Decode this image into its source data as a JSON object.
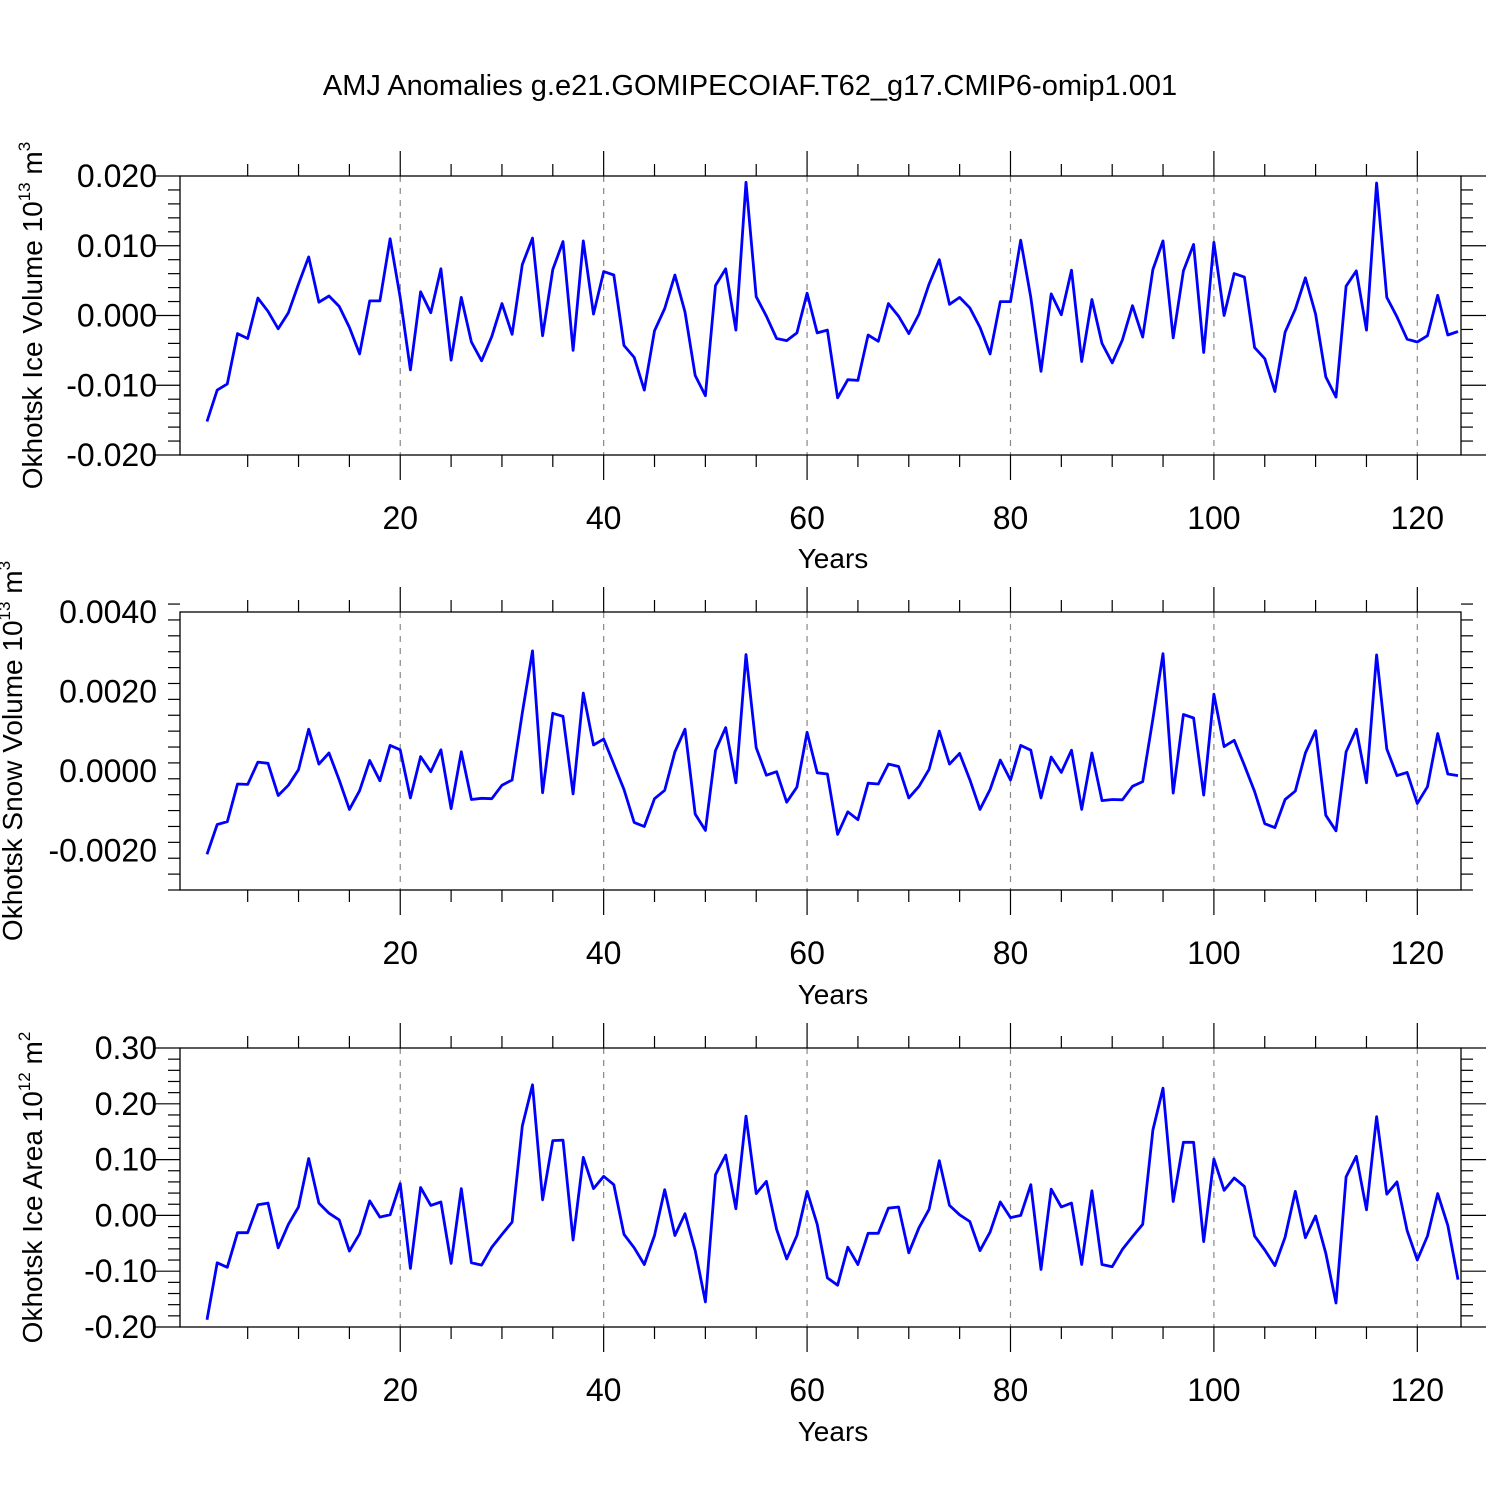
{
  "title": "AMJ Anomalies g.e21.GOMIPECOIAF.T62_g17.CMIP6-omip1.001",
  "chart_data": [
    {
      "type": "line",
      "ylabel": "Okhotsk Ice Volume 10",
      "ylabel_sup": "13",
      "ylabel_unit": "m",
      "ylabel_unit_sup": "3",
      "xlabel": "Years",
      "xlim": [
        1,
        124
      ],
      "ylim": [
        -0.02,
        0.02
      ],
      "xticks": [
        20,
        40,
        60,
        80,
        100,
        120
      ],
      "xtick_labels": [
        "20",
        "40",
        "60",
        "80",
        "100",
        "120"
      ],
      "yticks": [
        -0.02,
        -0.01,
        0.0,
        0.01,
        0.02
      ],
      "ytick_labels": [
        "-0.020",
        "-0.010",
        "0.000",
        "0.010",
        "0.020"
      ],
      "line_color": "#0000ff",
      "values": [
        -0.0152,
        -0.0107,
        -0.0098,
        -0.0026,
        -0.0033,
        0.0025,
        0.0006,
        -0.0019,
        0.0004,
        0.0045,
        0.0084,
        0.0019,
        0.0028,
        0.0013,
        -0.0017,
        -0.0055,
        0.0021,
        0.0021,
        0.011,
        0.0026,
        -0.0078,
        0.0034,
        0.0004,
        0.0067,
        -0.0064,
        0.0026,
        -0.0038,
        -0.0065,
        -0.003,
        0.0017,
        -0.0027,
        0.0073,
        0.0111,
        -0.0029,
        0.0066,
        0.0106,
        -0.005,
        0.0107,
        0.0002,
        0.0063,
        0.0058,
        -0.0043,
        -0.006,
        -0.0107,
        -0.0022,
        0.001,
        0.0058,
        0.0005,
        -0.0086,
        -0.0115,
        0.0043,
        0.0067,
        -0.0021,
        0.0191,
        0.0027,
        -0.0001,
        -0.0033,
        -0.0036,
        -0.0025,
        0.0032,
        -0.0025,
        -0.0021,
        -0.0118,
        -0.0092,
        -0.0093,
        -0.0028,
        -0.0037,
        0.0017,
        -0.0001,
        -0.0026,
        0.0002,
        0.0045,
        0.008,
        0.0016,
        0.0026,
        0.0011,
        -0.0017,
        -0.0055,
        0.002,
        0.002,
        0.0108,
        0.0026,
        -0.008,
        0.0031,
        0.0001,
        0.0065,
        -0.0066,
        0.0023,
        -0.004,
        -0.0068,
        -0.0035,
        0.0014,
        -0.0031,
        0.0066,
        0.0107,
        -0.0032,
        0.0064,
        0.0102,
        -0.0053,
        0.0105,
        0.0,
        0.006,
        0.0055,
        -0.0046,
        -0.0062,
        -0.0109,
        -0.0024,
        0.0009,
        0.0054,
        0.0002,
        -0.0088,
        -0.0117,
        0.0042,
        0.0064,
        -0.0021,
        0.019,
        0.0026,
        -0.0002,
        -0.0034,
        -0.0038,
        -0.0029,
        0.0029,
        -0.0028,
        -0.0023
      ]
    },
    {
      "type": "line",
      "ylabel": "Okhotsk Snow Volume 10",
      "ylabel_sup": "13",
      "ylabel_unit": "m",
      "ylabel_unit_sup": "3",
      "xlabel": "Years",
      "xlim": [
        1,
        124
      ],
      "ylim": [
        -0.003,
        0.004
      ],
      "xticks": [
        20,
        40,
        60,
        80,
        100,
        120
      ],
      "xtick_labels": [
        "20",
        "40",
        "60",
        "80",
        "100",
        "120"
      ],
      "yticks": [
        -0.002,
        0.0,
        0.002,
        0.004
      ],
      "ytick_labels": [
        "-0.0020",
        "0.0000",
        "0.0020",
        "0.0040"
      ],
      "line_color": "#0000ff",
      "values": [
        -0.0021,
        -0.00135,
        -0.00128,
        -0.00033,
        -0.00034,
        0.00022,
        0.00019,
        -0.00062,
        -0.00036,
        3e-05,
        0.00105,
        0.00017,
        0.00045,
        -0.00023,
        -0.00097,
        -0.0005,
        0.00026,
        -0.00025,
        0.00064,
        0.00053,
        -0.00068,
        0.00036,
        -2e-05,
        0.00053,
        -0.00095,
        0.00048,
        -0.00072,
        -0.00069,
        -0.0007,
        -0.00036,
        -0.00023,
        0.00146,
        0.00302,
        -0.00055,
        0.00145,
        0.00137,
        -0.00058,
        0.00196,
        0.00065,
        0.0008,
        0.00017,
        -0.00047,
        -0.0013,
        -0.0014,
        -0.0007,
        -0.00049,
        0.00048,
        0.00105,
        -0.00109,
        -0.0015,
        0.00051,
        0.00109,
        -0.0003,
        0.00293,
        0.00058,
        -0.00011,
        -2e-05,
        -0.00079,
        -0.00041,
        0.00097,
        -5e-05,
        -8e-05,
        -0.0016,
        -0.00103,
        -0.00123,
        -0.00031,
        -0.00033,
        0.00017,
        0.00011,
        -0.00068,
        -0.00039,
        4e-05,
        0.001,
        0.00017,
        0.00044,
        -0.00022,
        -0.00097,
        -0.00047,
        0.00027,
        -0.00023,
        0.00064,
        0.00052,
        -0.00068,
        0.00035,
        -4e-05,
        0.00052,
        -0.00097,
        0.00045,
        -0.00075,
        -0.00072,
        -0.00073,
        -0.00039,
        -0.00027,
        0.00131,
        0.00295,
        -0.00056,
        0.00142,
        0.00133,
        -0.00061,
        0.00193,
        0.00061,
        0.00077,
        0.00014,
        -0.00052,
        -0.00133,
        -0.00143,
        -0.00072,
        -0.00051,
        0.00045,
        0.00101,
        -0.00112,
        -0.00151,
        0.00048,
        0.00105,
        -0.0003,
        0.00292,
        0.00055,
        -0.00012,
        -4e-05,
        -0.00082,
        -0.0004,
        0.00094,
        -8e-05,
        -0.00012
      ]
    },
    {
      "type": "line",
      "ylabel": "Okhotsk Ice Area 10",
      "ylabel_sup": "12",
      "ylabel_unit": "m",
      "ylabel_unit_sup": "2",
      "xlabel": "Years",
      "xlim": [
        1,
        124
      ],
      "ylim": [
        -0.2,
        0.3
      ],
      "xticks": [
        20,
        40,
        60,
        80,
        100,
        120
      ],
      "xtick_labels": [
        "20",
        "40",
        "60",
        "80",
        "100",
        "120"
      ],
      "yticks": [
        -0.2,
        -0.1,
        0.0,
        0.1,
        0.2,
        0.3
      ],
      "ytick_labels": [
        "-0.20",
        "-0.10",
        "0.00",
        "0.10",
        "0.20",
        "0.30"
      ],
      "line_color": "#0000ff",
      "values": [
        -0.187,
        -0.085,
        -0.093,
        -0.031,
        -0.031,
        0.019,
        0.022,
        -0.058,
        -0.016,
        0.015,
        0.102,
        0.022,
        0.004,
        -0.008,
        -0.064,
        -0.033,
        0.026,
        -0.003,
        0.001,
        0.057,
        -0.095,
        0.05,
        0.018,
        0.024,
        -0.086,
        0.048,
        -0.085,
        -0.089,
        -0.057,
        -0.034,
        -0.012,
        0.16,
        0.234,
        0.028,
        0.134,
        0.135,
        -0.044,
        0.104,
        0.048,
        0.07,
        0.055,
        -0.034,
        -0.058,
        -0.088,
        -0.036,
        0.046,
        -0.036,
        0.003,
        -0.063,
        -0.155,
        0.073,
        0.108,
        0.012,
        0.178,
        0.039,
        0.061,
        -0.025,
        -0.078,
        -0.036,
        0.043,
        -0.016,
        -0.112,
        -0.125,
        -0.057,
        -0.088,
        -0.032,
        -0.032,
        0.013,
        0.015,
        -0.067,
        -0.022,
        0.011,
        0.098,
        0.018,
        0.001,
        -0.011,
        -0.063,
        -0.03,
        0.024,
        -0.004,
        0.0,
        0.055,
        -0.097,
        0.047,
        0.015,
        0.022,
        -0.088,
        0.044,
        -0.088,
        -0.092,
        -0.061,
        -0.038,
        -0.016,
        0.153,
        0.228,
        0.025,
        0.131,
        0.131,
        -0.047,
        0.101,
        0.045,
        0.067,
        0.052,
        -0.037,
        -0.062,
        -0.09,
        -0.039,
        0.043,
        -0.04,
        -0.001,
        -0.068,
        -0.157,
        0.069,
        0.106,
        0.01,
        0.177,
        0.038,
        0.06,
        -0.027,
        -0.08,
        -0.037,
        0.039,
        -0.018,
        -0.115
      ]
    }
  ]
}
